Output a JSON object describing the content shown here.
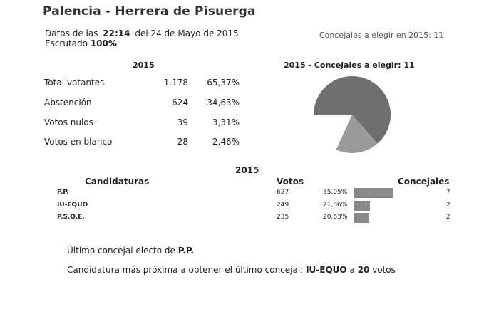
{
  "header": {
    "title": "Palencia - Herrera de Pisuerga",
    "datos_prefix": "Datos de las",
    "time": "22:14",
    "date_text": "del 24 de Mayo de 2015",
    "escrutado_label": "Escrutado",
    "escrutado_value": "100%",
    "concejales_text": "Concejales a elegir en 2015: 11"
  },
  "summary": {
    "year": "2015",
    "rows": [
      {
        "label": "Total votantes",
        "value": "1.178",
        "pct": "65,37%"
      },
      {
        "label": "Abstención",
        "value": "624",
        "pct": "34,63%"
      },
      {
        "label": "Votos nulos",
        "value": "39",
        "pct": "3,31%"
      },
      {
        "label": "Votos en blanco",
        "value": "28",
        "pct": "2,46%"
      }
    ]
  },
  "pie": {
    "title": "2015 - Concejales a elegir: 11",
    "colors": {
      "pp": "#6f6f6f",
      "iu": "#9a9a9a"
    }
  },
  "results": {
    "year": "2015",
    "headers": {
      "candidaturas": "Candidaturas",
      "votos": "Votos",
      "concejales": "Concejales"
    },
    "bar_color": "#8a8a8a",
    "rows": [
      {
        "party": "P.P.",
        "votes": "627",
        "pct": "55,05%",
        "share": 0.5505,
        "seats": "7"
      },
      {
        "party": "IU-EQUO",
        "votes": "249",
        "pct": "21,86%",
        "share": 0.2186,
        "seats": "2"
      },
      {
        "party": "P.S.O.E.",
        "votes": "235",
        "pct": "20,63%",
        "share": 0.2063,
        "seats": "2"
      }
    ]
  },
  "footer": {
    "ultimo_prefix": "Último concejal electo de",
    "ultimo_party": "P.P.",
    "proxima_prefix": "Candidatura más próxima a obtener el último concejal:",
    "proxima_party": "IU-EQUO",
    "proxima_mid": "a",
    "proxima_votes": "20",
    "proxima_suffix": "votos"
  }
}
